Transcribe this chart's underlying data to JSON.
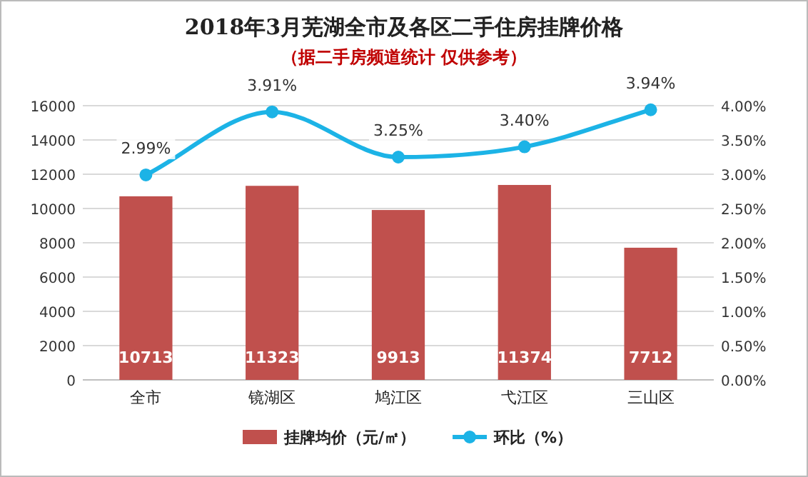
{
  "chart_data": {
    "type": "bar",
    "title": "2018年3月芜湖全市及各区二手住房挂牌价格",
    "subtitle": "（据二手房频道统计 仅供参考）",
    "categories": [
      "全市",
      "镜湖区",
      "鸠江区",
      "弋江区",
      "三山区"
    ],
    "series": [
      {
        "name": "挂牌均价（元/㎡）",
        "color": "#c0504d",
        "values": [
          10713,
          11323,
          9913,
          11374,
          7712
        ],
        "value_labels": [
          "10713",
          "11323",
          "9913",
          "11374",
          "7712"
        ]
      },
      {
        "name": "环比（%）",
        "type": "line",
        "axis": "y2",
        "color": "#1cb3e6",
        "values": [
          2.99,
          3.91,
          3.25,
          3.4,
          3.94
        ],
        "value_labels": [
          "2.99%",
          "3.91%",
          "3.25%",
          "3.40%",
          "3.94%"
        ]
      }
    ],
    "ylim": [
      0,
      16000
    ],
    "yticks": [
      0,
      2000,
      4000,
      6000,
      8000,
      10000,
      12000,
      14000,
      16000
    ],
    "y2lim": [
      0,
      4
    ],
    "y2ticks": [
      {
        "value": 0,
        "label": "0.00%"
      },
      {
        "value": 0.5,
        "label": "0.50%"
      },
      {
        "value": 1,
        "label": "1.00%"
      },
      {
        "value": 1.5,
        "label": "1.50%"
      },
      {
        "value": 2,
        "label": "2.00%"
      },
      {
        "value": 2.5,
        "label": "2.50%"
      },
      {
        "value": 3,
        "label": "3.00%"
      },
      {
        "value": 3.5,
        "label": "3.50%"
      },
      {
        "value": 4,
        "label": "4.00%"
      }
    ],
    "grid": "y",
    "legend": "bottom",
    "marker": "circle",
    "line_style": "solid"
  }
}
